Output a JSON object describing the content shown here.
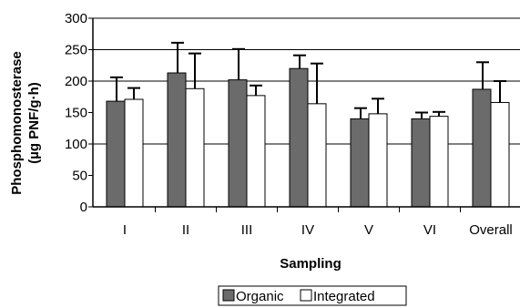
{
  "chart_data": {
    "type": "bar",
    "xlabel": "Sampling",
    "ylabel_line1": "Phosphomonosterase",
    "ylabel_line2": "(µg PNF/g·h)",
    "categories": [
      "I",
      "II",
      "III",
      "IV",
      "V",
      "VI",
      "Overall"
    ],
    "ylim": [
      0,
      300
    ],
    "yticks": [
      "0",
      "50",
      "100",
      "150",
      "200",
      "250",
      "300"
    ],
    "grid": "horizontal lines at 100, 200 and 250",
    "legend_position": "bottom-center",
    "series": [
      {
        "name": "Organic",
        "color": "#6b6b6b",
        "values": [
          168,
          213,
          202,
          220,
          140,
          140,
          187
        ],
        "error_upper": [
          206,
          261,
          251,
          241,
          157,
          150,
          230
        ]
      },
      {
        "name": "Integrated",
        "color": "#ffffff",
        "values": [
          171,
          188,
          177,
          164,
          148,
          144,
          166
        ],
        "error_upper": [
          189,
          244,
          193,
          228,
          172,
          151,
          200
        ]
      }
    ]
  }
}
